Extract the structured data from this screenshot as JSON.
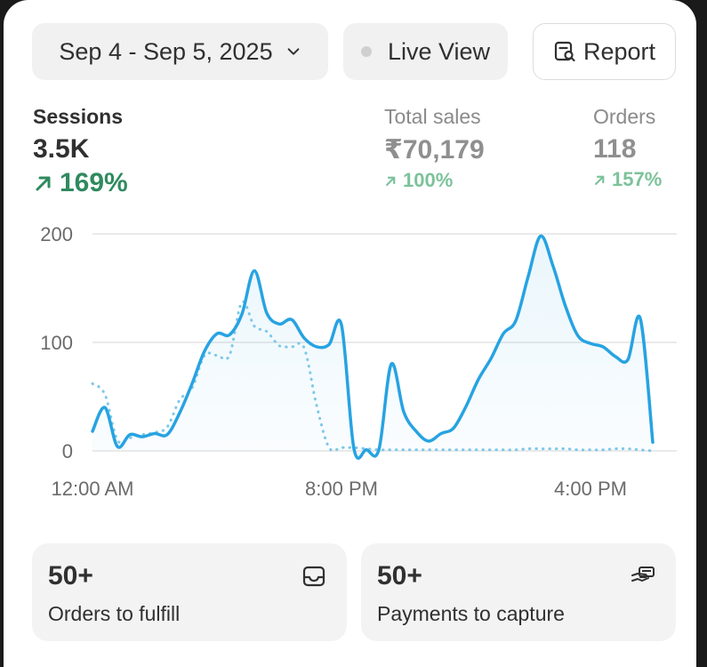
{
  "header": {
    "date_range": "Sep 4 - Sep 5, 2025",
    "live_view_label": "Live View",
    "report_label": "Report"
  },
  "metrics": [
    {
      "label": "Sessions",
      "value": "3.5K",
      "delta": "169%",
      "trend": "up",
      "active": true
    },
    {
      "label": "Total sales",
      "value": "₹70,179",
      "delta": "100%",
      "trend": "up",
      "active": false
    },
    {
      "label": "Orders",
      "value": "118",
      "delta": "157%",
      "trend": "up",
      "active": false
    }
  ],
  "colors": {
    "accent_line": "#27a3e2",
    "positive": "#2f8a5f",
    "positive_muted": "#7cc29a",
    "comparison_line": "#7ec8e8"
  },
  "chart_data": {
    "type": "line",
    "x_tick_labels": [
      "12:00 AM",
      "8:00 PM",
      "4:00 PM"
    ],
    "x_tick_index": [
      0,
      20,
      40
    ],
    "y_ticks": [
      0,
      100,
      200
    ],
    "ylim": [
      0,
      200
    ],
    "grid": true,
    "series": [
      {
        "role": "current",
        "style": "solid",
        "values": [
          18,
          40,
          4,
          15,
          13,
          16,
          15,
          35,
          62,
          92,
          108,
          107,
          126,
          166,
          127,
          117,
          121,
          104,
          96,
          98,
          116,
          2,
          1,
          1,
          80,
          36,
          18,
          9,
          16,
          21,
          41,
          66,
          85,
          108,
          120,
          161,
          198,
          170,
          133,
          106,
          99,
          96,
          87,
          84,
          122,
          8
        ]
      },
      {
        "role": "comparison",
        "style": "dotted",
        "values": [
          62,
          52,
          10,
          12,
          15,
          17,
          22,
          47,
          58,
          88,
          88,
          88,
          137,
          115,
          110,
          97,
          96,
          95,
          42,
          3,
          3,
          3,
          2,
          1,
          1,
          1,
          1,
          1,
          1,
          1,
          1,
          1,
          1,
          1,
          1,
          2,
          2,
          2,
          2,
          1,
          1,
          1,
          2,
          2,
          1,
          0
        ]
      }
    ]
  },
  "tiles": [
    {
      "count": "50+",
      "label": "Orders to fulfill",
      "icon": "inbox-icon"
    },
    {
      "count": "50+",
      "label": "Payments to capture",
      "icon": "hand-card-icon"
    }
  ]
}
